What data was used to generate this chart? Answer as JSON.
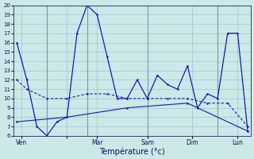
{
  "xlabel": "Température (°c)",
  "bg_color": "#cce8e8",
  "line_color": "#1a1aaa",
  "grid_color": "#99bbcc",
  "ylim": [
    6,
    20
  ],
  "yticks": [
    6,
    7,
    8,
    9,
    10,
    11,
    12,
    13,
    14,
    15,
    16,
    17,
    18,
    19,
    20
  ],
  "vlines": [
    3,
    7,
    13,
    20
  ],
  "xtick_positions": [
    0.5,
    5,
    8,
    13,
    17.5,
    22
  ],
  "xtick_labels": [
    "Ven",
    "",
    "Mar",
    "Sam",
    "Dim",
    "Lun"
  ],
  "line1_x": [
    0,
    1,
    2,
    3,
    4,
    5,
    6,
    7,
    8,
    9,
    10,
    11,
    12,
    13,
    14,
    15,
    16,
    17,
    18,
    19,
    20,
    21,
    22,
    23
  ],
  "line1_y": [
    16,
    12,
    7,
    6,
    7.5,
    8,
    17,
    20,
    19,
    14.5,
    10,
    10,
    12,
    10,
    12.5,
    11.5,
    11,
    13.5,
    9,
    10.5,
    10,
    17,
    17,
    6.5
  ],
  "line2_x": [
    0,
    1,
    3,
    5,
    7,
    9,
    11,
    13,
    15,
    17,
    19,
    21,
    23
  ],
  "line2_y": [
    12,
    11,
    10,
    10,
    10.5,
    10.5,
    10,
    10,
    10,
    10,
    9.5,
    9.5,
    7
  ],
  "line3_x": [
    0,
    5,
    11,
    17,
    23
  ],
  "line3_y": [
    7.5,
    8,
    9,
    9.5,
    6.5
  ]
}
